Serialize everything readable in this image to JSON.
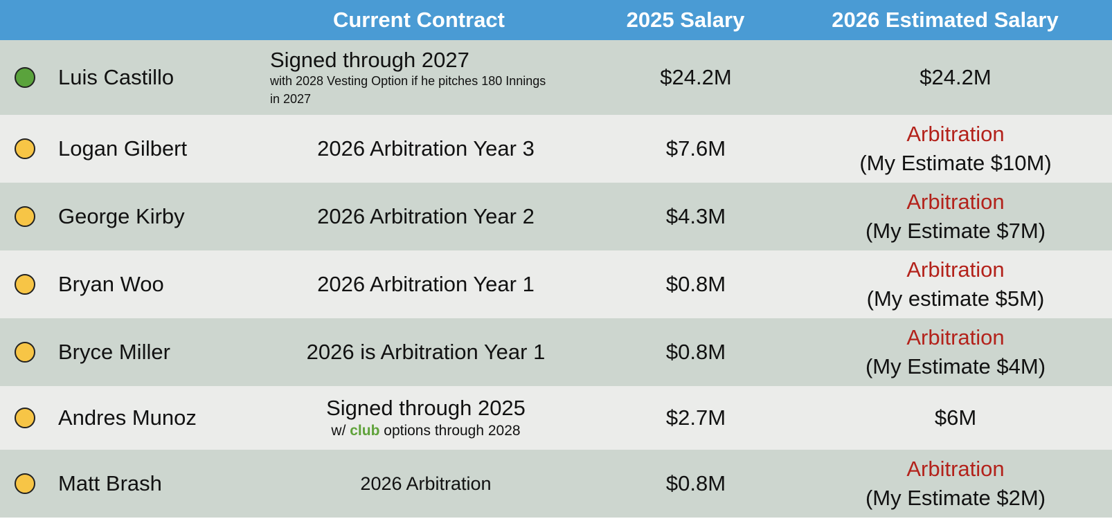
{
  "colors": {
    "header_bg": "#4a9bd4",
    "row_dark": "#cdd6cf",
    "row_light": "#ebecea",
    "arbitration_red": "#b3221b",
    "club_green": "#5fa23a",
    "status_green": "#5aa33c",
    "status_yellow": "#f7c546"
  },
  "header": {
    "contract": "Current Contract",
    "salary_2025": "2025 Salary",
    "salary_2026": "2026 Estimated Salary"
  },
  "rows": [
    {
      "status": "green",
      "name": "Luis Castillo",
      "contract_main": "Signed through 2027",
      "contract_note": "with 2028 Vesting Option if he pitches 180 Innings in 2027",
      "salary_2025": "$24.2M",
      "est_line1": "$24.2M"
    },
    {
      "status": "yellow",
      "name": "Logan Gilbert",
      "contract_main": "2026 Arbitration Year 3",
      "salary_2025": "$7.6M",
      "est_line1": "Arbitration",
      "est_line2": "(My Estimate $10M)"
    },
    {
      "status": "yellow",
      "name": "George Kirby",
      "contract_main": "2026 Arbitration Year 2",
      "salary_2025": "$4.3M",
      "est_line1": "Arbitration",
      "est_line2": "(My Estimate $7M)"
    },
    {
      "status": "yellow",
      "name": "Bryan Woo",
      "contract_main": "2026 Arbitration Year 1",
      "salary_2025": "$0.8M",
      "est_line1": "Arbitration",
      "est_line2": "(My estimate $5M)"
    },
    {
      "status": "yellow",
      "name": "Bryce Miller",
      "contract_main": "2026 is Arbitration Year 1",
      "salary_2025": "$0.8M",
      "est_line1": "Arbitration",
      "est_line2": "(My Estimate $4M)"
    },
    {
      "status": "yellow",
      "name": "Andres Munoz",
      "contract_main": "Signed through 2025",
      "contract_note_prefix": "w/",
      "contract_note_club": "club",
      "contract_note_suffix": "options through 2028",
      "salary_2025": "$2.7M",
      "est_line1": "$6M"
    },
    {
      "status": "yellow",
      "name": "Matt Brash",
      "contract_main": "2026 Arbitration",
      "salary_2025": "$0.8M",
      "est_line1": "Arbitration",
      "est_line2": "(My Estimate $2M)"
    }
  ]
}
